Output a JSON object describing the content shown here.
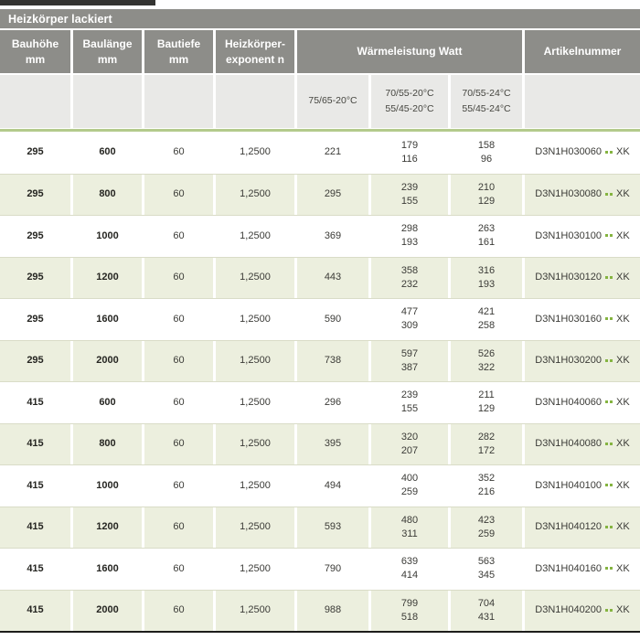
{
  "title": "Heizkörper lackiert",
  "header": {
    "cols": [
      {
        "l1": "Bauhöhe",
        "l2": "mm"
      },
      {
        "l1": "Baulänge",
        "l2": "mm"
      },
      {
        "l1": "Bautiefe",
        "l2": "mm"
      },
      {
        "l1": "Heizkörper-",
        "l2": "exponent n"
      }
    ],
    "watt_group": "Wärmeleistung Watt",
    "artikel": "Artikelnummer",
    "sub": {
      "c5": "75/65-20°C",
      "c6a": "70/55-20°C",
      "c6b": "55/45-20°C",
      "c7a": "70/55-24°C",
      "c7b": "55/45-24°C"
    }
  },
  "article_suffix": "XK",
  "colors": {
    "header_gray": "#8d8d89",
    "subheader_gray": "#e9e9e7",
    "row_green": "#ecefde",
    "accent_green": "#b3ca8c",
    "dot_green": "#85b441"
  },
  "rows": [
    {
      "h": "295",
      "l": "600",
      "t": "60",
      "n": "1,2500",
      "w75": "221",
      "w70a": "179",
      "w70b": "116",
      "w24a": "158",
      "w24b": "96",
      "art": "D3N1H030060"
    },
    {
      "h": "295",
      "l": "800",
      "t": "60",
      "n": "1,2500",
      "w75": "295",
      "w70a": "239",
      "w70b": "155",
      "w24a": "210",
      "w24b": "129",
      "art": "D3N1H030080"
    },
    {
      "h": "295",
      "l": "1000",
      "t": "60",
      "n": "1,2500",
      "w75": "369",
      "w70a": "298",
      "w70b": "193",
      "w24a": "263",
      "w24b": "161",
      "art": "D3N1H030100"
    },
    {
      "h": "295",
      "l": "1200",
      "t": "60",
      "n": "1,2500",
      "w75": "443",
      "w70a": "358",
      "w70b": "232",
      "w24a": "316",
      "w24b": "193",
      "art": "D3N1H030120"
    },
    {
      "h": "295",
      "l": "1600",
      "t": "60",
      "n": "1,2500",
      "w75": "590",
      "w70a": "477",
      "w70b": "309",
      "w24a": "421",
      "w24b": "258",
      "art": "D3N1H030160"
    },
    {
      "h": "295",
      "l": "2000",
      "t": "60",
      "n": "1,2500",
      "w75": "738",
      "w70a": "597",
      "w70b": "387",
      "w24a": "526",
      "w24b": "322",
      "art": "D3N1H030200"
    },
    {
      "h": "415",
      "l": "600",
      "t": "60",
      "n": "1,2500",
      "w75": "296",
      "w70a": "239",
      "w70b": "155",
      "w24a": "211",
      "w24b": "129",
      "art": "D3N1H040060"
    },
    {
      "h": "415",
      "l": "800",
      "t": "60",
      "n": "1,2500",
      "w75": "395",
      "w70a": "320",
      "w70b": "207",
      "w24a": "282",
      "w24b": "172",
      "art": "D3N1H040080"
    },
    {
      "h": "415",
      "l": "1000",
      "t": "60",
      "n": "1,2500",
      "w75": "494",
      "w70a": "400",
      "w70b": "259",
      "w24a": "352",
      "w24b": "216",
      "art": "D3N1H040100"
    },
    {
      "h": "415",
      "l": "1200",
      "t": "60",
      "n": "1,2500",
      "w75": "593",
      "w70a": "480",
      "w70b": "311",
      "w24a": "423",
      "w24b": "259",
      "art": "D3N1H040120"
    },
    {
      "h": "415",
      "l": "1600",
      "t": "60",
      "n": "1,2500",
      "w75": "790",
      "w70a": "639",
      "w70b": "414",
      "w24a": "563",
      "w24b": "345",
      "art": "D3N1H040160"
    },
    {
      "h": "415",
      "l": "2000",
      "t": "60",
      "n": "1,2500",
      "w75": "988",
      "w70a": "799",
      "w70b": "518",
      "w24a": "704",
      "w24b": "431",
      "art": "D3N1H040200"
    }
  ]
}
